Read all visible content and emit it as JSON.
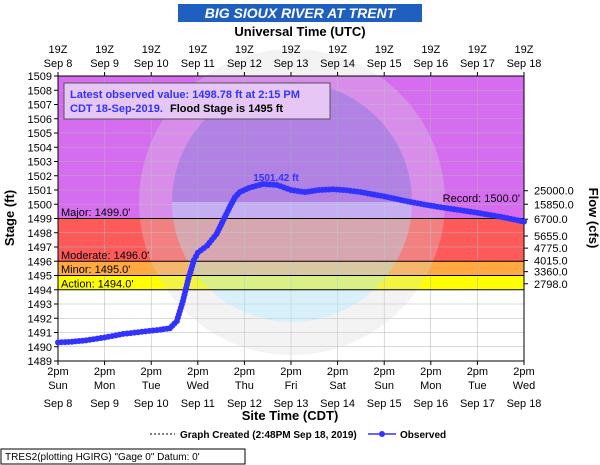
{
  "chart_data": {
    "type": "line",
    "title": "BIG SIOUX RIVER AT TRENT",
    "top_axis_title": "Universal Time (UTC)",
    "bottom_axis_title": "Site Time (CDT)",
    "ylabel": "Stage (ft)",
    "y2label": "Flow (cfs)",
    "ylim": [
      1489,
      1509
    ],
    "yticks": [
      1489,
      1490,
      1491,
      1492,
      1493,
      1494,
      1495,
      1496,
      1497,
      1498,
      1499,
      1500,
      1501,
      1502,
      1503,
      1504,
      1505,
      1506,
      1507,
      1508,
      1509
    ],
    "top_ticks": [
      {
        "time": "19Z",
        "date": "Sep 8"
      },
      {
        "time": "19Z",
        "date": "Sep 9"
      },
      {
        "time": "19Z",
        "date": "Sep 10"
      },
      {
        "time": "19Z",
        "date": "Sep 11"
      },
      {
        "time": "19Z",
        "date": "Sep 12"
      },
      {
        "time": "19Z",
        "date": "Sep 13"
      },
      {
        "time": "19Z",
        "date": "Sep 14"
      },
      {
        "time": "19Z",
        "date": "Sep 15"
      },
      {
        "time": "19Z",
        "date": "Sep 16"
      },
      {
        "time": "19Z",
        "date": "Sep 17"
      },
      {
        "time": "19Z",
        "date": "Sep 18"
      }
    ],
    "bottom_ticks": [
      {
        "time": "2pm",
        "day": "Sun",
        "date": "Sep 8"
      },
      {
        "time": "2pm",
        "day": "Mon",
        "date": "Sep 9"
      },
      {
        "time": "2pm",
        "day": "Tue",
        "date": "Sep 10"
      },
      {
        "time": "2pm",
        "day": "Wed",
        "date": "Sep 11"
      },
      {
        "time": "2pm",
        "day": "Thu",
        "date": "Sep 12"
      },
      {
        "time": "2pm",
        "day": "Fri",
        "date": "Sep 13"
      },
      {
        "time": "2pm",
        "day": "Sat",
        "date": "Sep 14"
      },
      {
        "time": "2pm",
        "day": "Sun",
        "date": "Sep 15"
      },
      {
        "time": "2pm",
        "day": "Mon",
        "date": "Sep 16"
      },
      {
        "time": "2pm",
        "day": "Tue",
        "date": "Sep 17"
      },
      {
        "time": "2pm",
        "day": "Wed",
        "date": "Sep 18"
      }
    ],
    "flow_ticks": [
      {
        "stage": 1494.42,
        "label": "2798.0"
      },
      {
        "stage": 1495.27,
        "label": "3360.0"
      },
      {
        "stage": 1496.05,
        "label": "4015.0"
      },
      {
        "stage": 1496.92,
        "label": "4775.0"
      },
      {
        "stage": 1497.77,
        "label": "5655.0"
      },
      {
        "stage": 1498.95,
        "label": "6700.0"
      },
      {
        "stage": 1500.0,
        "label": "15850.0"
      },
      {
        "stage": 1500.95,
        "label": "25000.0"
      }
    ],
    "flood_categories": [
      {
        "name": "Action",
        "label": "Action: 1494.0'",
        "from": 1494.0,
        "to": 1495.0,
        "color": "#ffff00"
      },
      {
        "name": "Minor",
        "label": "Minor: 1495.0'",
        "from": 1495.0,
        "to": 1496.0,
        "color": "#ffa940"
      },
      {
        "name": "Moderate",
        "label": "Moderate: 1496.0'",
        "from": 1496.0,
        "to": 1499.0,
        "color": "#ff5a5a"
      },
      {
        "name": "Major",
        "label": "Major: 1499.0'",
        "from": 1499.0,
        "to": 1509.0,
        "color": "#d66df0"
      }
    ],
    "record": {
      "label": "Record: 1500.0'",
      "value": 1500.0
    },
    "peak_label": "1501.42 ft",
    "info_box": {
      "line1": "Latest observed value: 1498.78 ft at 2:15 PM",
      "line2_blue": "CDT 18-Sep-2019.",
      "line2_black": "Flood Stage is 1495 ft"
    },
    "legend": {
      "created": "Graph Created (2:48PM Sep 18, 2019)",
      "observed": "Observed"
    },
    "footer": "TRES2(plotting HGIRG) \"Gage 0\" Datum: 0'",
    "series": [
      {
        "name": "Observed",
        "color": "#3333ff",
        "x": [
          0,
          0.3,
          0.6,
          1.0,
          1.4,
          1.8,
          2.2,
          2.4,
          2.55,
          2.68,
          2.8,
          2.92,
          3.0,
          3.2,
          3.4,
          3.55,
          3.7,
          3.8,
          3.9,
          4.1,
          4.4,
          4.7,
          5.0,
          5.3,
          5.6,
          5.9,
          6.2,
          6.5,
          7.0,
          7.5,
          8.0,
          8.5,
          9.0,
          9.5,
          10.0
        ],
        "y": [
          1490.3,
          1490.35,
          1490.45,
          1490.65,
          1490.9,
          1491.05,
          1491.2,
          1491.3,
          1491.8,
          1493.2,
          1494.8,
          1496.1,
          1496.6,
          1497.1,
          1497.9,
          1498.9,
          1499.9,
          1500.5,
          1500.85,
          1501.15,
          1501.42,
          1501.35,
          1501.0,
          1500.85,
          1501.0,
          1501.05,
          1500.98,
          1500.85,
          1500.55,
          1500.2,
          1499.9,
          1499.65,
          1499.4,
          1499.12,
          1498.78
        ]
      }
    ]
  }
}
